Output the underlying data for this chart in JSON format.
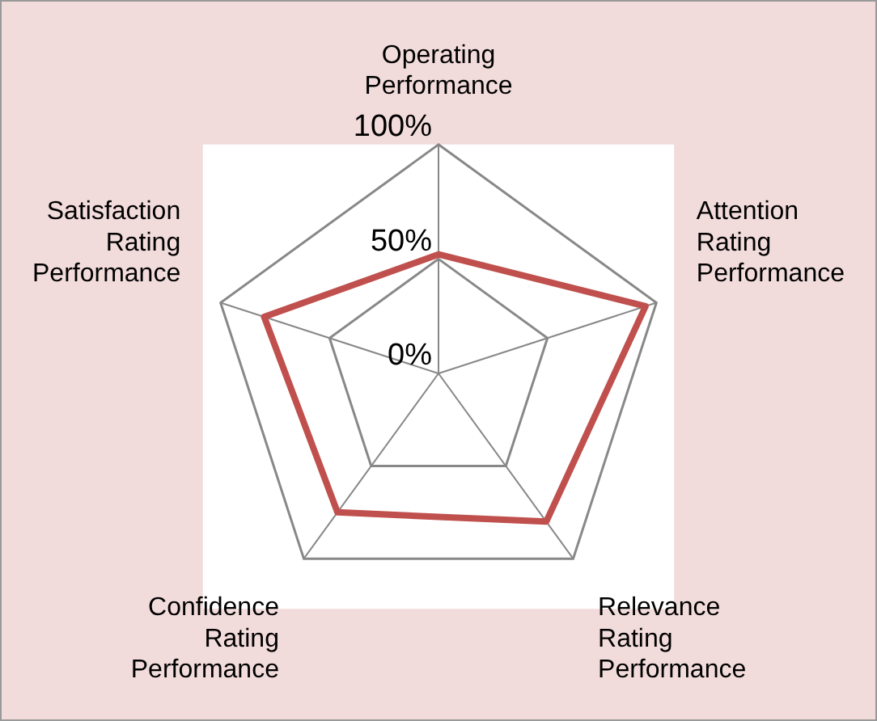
{
  "chart_data": {
    "type": "radar",
    "categories": [
      "Operating Performance",
      "Attention Rating Performance",
      "Relevance Rating Performance",
      "Confidence Rating Performance",
      "Satisfaction Rating Performance"
    ],
    "series": [
      {
        "color": "#c0504d",
        "values": [
          52,
          95,
          80,
          75,
          80
        ]
      }
    ],
    "ylim": [
      0,
      100
    ],
    "yticks": [
      {
        "value": 0,
        "label": "0%"
      },
      {
        "value": 50,
        "label": "50%"
      },
      {
        "value": 100,
        "label": "100%"
      }
    ],
    "grid": true,
    "legend": false,
    "marker": "none"
  }
}
